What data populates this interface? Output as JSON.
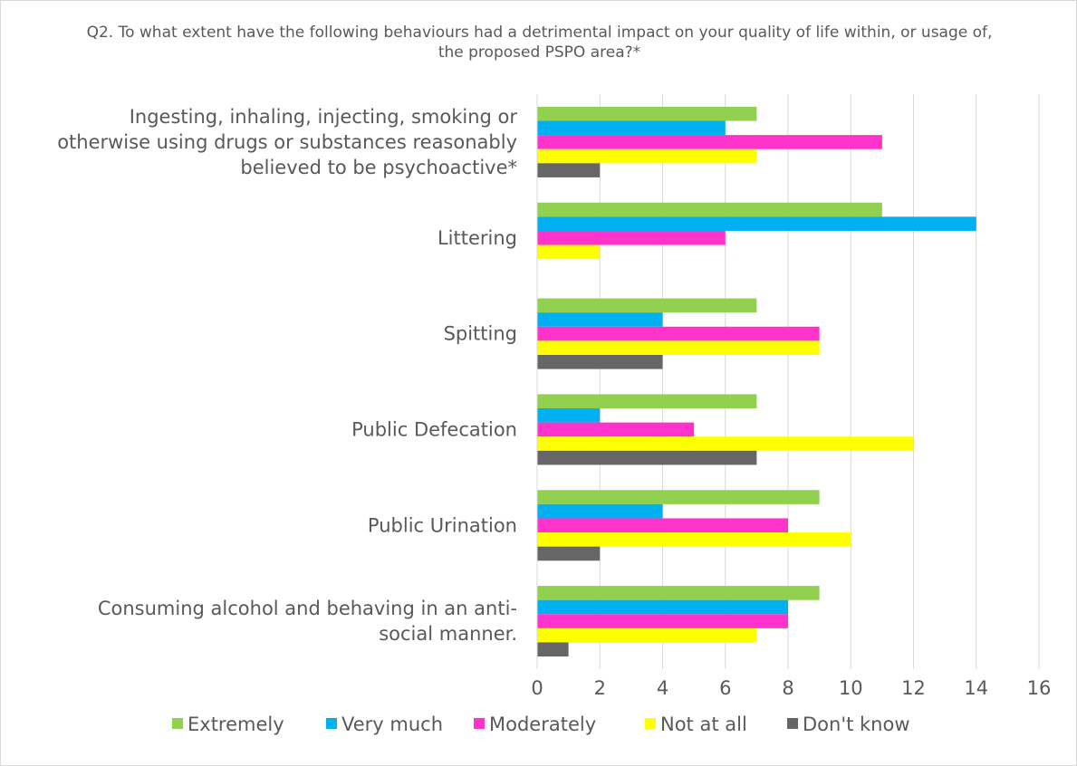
{
  "chart_data": {
    "type": "bar",
    "orientation": "horizontal",
    "title": "Q2. To what extent have the following behaviours had a detrimental impact on your quality of life within, or usage of, the proposed PSPO area?*",
    "categories": [
      "Ingesting, inhaling, injecting, smoking or otherwise using drugs or substances reasonably believed to be psychoactive*",
      "Littering",
      "Spitting",
      "Public Defecation",
      "Public Urination",
      "Consuming alcohol and behaving in an anti-social manner."
    ],
    "category_lines": [
      [
        "Ingesting, inhaling, injecting, smoking or",
        "otherwise using drugs or substances reasonably",
        "believed to be psychoactive*"
      ],
      [
        "Littering"
      ],
      [
        "Spitting"
      ],
      [
        "Public Defecation"
      ],
      [
        "Public Urination"
      ],
      [
        "Consuming alcohol and behaving in an anti-",
        "social manner."
      ]
    ],
    "series": [
      {
        "name": "Extremely",
        "color": "#92d050",
        "values": [
          7,
          11,
          7,
          7,
          9,
          9
        ]
      },
      {
        "name": "Very much",
        "color": "#00b0f0",
        "values": [
          6,
          14,
          4,
          2,
          4,
          8
        ]
      },
      {
        "name": "Moderately",
        "color": "#ff33cc",
        "values": [
          11,
          6,
          9,
          5,
          8,
          8
        ]
      },
      {
        "name": "Not at all",
        "color": "#ffff00",
        "values": [
          7,
          2,
          9,
          12,
          10,
          7
        ]
      },
      {
        "name": "Don't know",
        "color": "#666666",
        "values": [
          2,
          0,
          4,
          7,
          2,
          1
        ]
      }
    ],
    "xlim": [
      0,
      16
    ],
    "xticks": [
      "0",
      "2",
      "4",
      "6",
      "8",
      "10",
      "12",
      "14",
      "16"
    ],
    "grid": "vertical",
    "legend": "bottom"
  }
}
